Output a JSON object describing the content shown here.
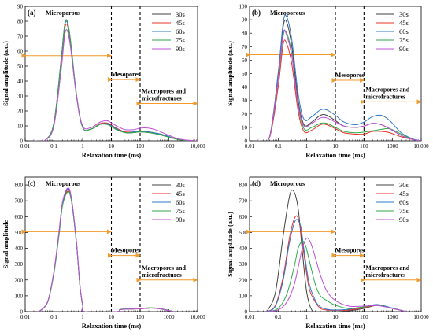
{
  "chart_data": [
    {
      "panel_label": "(a)",
      "type": "line",
      "xlabel": "Relaxation time (ms)",
      "ylabel": "Signal amplitude (a.u.)",
      "xscale": "log",
      "xlim": [
        0.01,
        10000
      ],
      "ylim": [
        0,
        90
      ],
      "xticks": [
        "0.01",
        "0.1",
        "1",
        "10",
        "100",
        "1000",
        "10,000"
      ],
      "yticks": [
        "0",
        "10",
        "20",
        "30",
        "40",
        "50",
        "60",
        "70",
        "80",
        "90"
      ],
      "legend": [
        "30s",
        "45s",
        "60s",
        "75s",
        "90s"
      ],
      "legend_position": "top-right",
      "region_labels": [
        "Microporous",
        "Mesopores",
        "Macropores and microfractures"
      ],
      "region_arrow_levels": [
        57,
        41,
        25
      ],
      "series": [
        {
          "name": "30s",
          "color": "#404040",
          "x": [
            0.02,
            0.05,
            0.1,
            0.18,
            0.25,
            0.35,
            0.6,
            1.0,
            2.0,
            4.0,
            7.0,
            10,
            15,
            30,
            60,
            100,
            200,
            400,
            800,
            2000,
            5000,
            10000
          ],
          "y": [
            0,
            0.5,
            12,
            55,
            80,
            72,
            32,
            9,
            8,
            11,
            11.5,
            10,
            8,
            5.5,
            5.5,
            6,
            5.5,
            4.5,
            3,
            1,
            0.2,
            0
          ]
        },
        {
          "name": "45s",
          "color": "#e8312a",
          "x": [
            0.02,
            0.05,
            0.1,
            0.18,
            0.25,
            0.35,
            0.6,
            1.0,
            2.0,
            4.0,
            7.0,
            10,
            15,
            30,
            60,
            100,
            200,
            400,
            800,
            2000,
            5000,
            10000
          ],
          "y": [
            0,
            0.5,
            12,
            53,
            77,
            70,
            31,
            9,
            8,
            11.5,
            12,
            10.5,
            8.5,
            6,
            6,
            6.5,
            6,
            5,
            3.5,
            1,
            0.2,
            0
          ]
        },
        {
          "name": "60s",
          "color": "#2f78c8",
          "x": [
            0.02,
            0.05,
            0.1,
            0.18,
            0.25,
            0.35,
            0.6,
            1.0,
            2.0,
            4.0,
            7.0,
            10,
            15,
            30,
            60,
            100,
            200,
            400,
            800,
            2000,
            5000,
            10000
          ],
          "y": [
            0,
            0.5,
            12,
            54,
            79,
            71,
            31,
            9,
            8,
            11,
            11.5,
            10,
            8,
            5.5,
            6,
            6.5,
            6,
            5,
            3.5,
            1,
            0.2,
            0
          ]
        },
        {
          "name": "75s",
          "color": "#2eaa4a",
          "x": [
            0.02,
            0.05,
            0.1,
            0.18,
            0.25,
            0.35,
            0.6,
            1.0,
            2.0,
            4.0,
            7.0,
            10,
            15,
            30,
            60,
            100,
            200,
            400,
            800,
            2000,
            5000,
            10000
          ],
          "y": [
            0,
            0.5,
            12,
            55,
            80,
            72,
            32,
            9,
            8,
            11,
            11,
            9.5,
            7.5,
            5.5,
            5.5,
            6,
            5.5,
            4.5,
            3,
            1,
            0.2,
            0
          ]
        },
        {
          "name": "90s",
          "color": "#c04fd8",
          "x": [
            0.02,
            0.05,
            0.1,
            0.18,
            0.25,
            0.35,
            0.6,
            1.0,
            2.0,
            4.0,
            7.0,
            10,
            15,
            30,
            60,
            100,
            200,
            400,
            800,
            2000,
            5000,
            10000
          ],
          "y": [
            0,
            0.5,
            10,
            48,
            73,
            67,
            31,
            10,
            9,
            12.5,
            13.5,
            12,
            10,
            7.5,
            7.5,
            8.5,
            8.5,
            7,
            4.5,
            1.5,
            0.3,
            0
          ]
        }
      ]
    },
    {
      "panel_label": "(b)",
      "type": "line",
      "xlabel": "Relaxation time (ms)",
      "ylabel": "Signal amplitude (a.u.)",
      "xscale": "log",
      "xlim": [
        0.01,
        10000
      ],
      "ylim": [
        0,
        100
      ],
      "xticks": [
        "0.01",
        "0.1",
        "1",
        "10",
        "100",
        "1000",
        "10,000"
      ],
      "yticks": [
        "0",
        "10",
        "20",
        "30",
        "40",
        "50",
        "60",
        "70",
        "80",
        "90",
        "100"
      ],
      "legend": [
        "30s",
        "45s",
        "60s",
        "75s",
        "90s"
      ],
      "legend_position": "top-right",
      "region_labels": [
        "Microporous",
        "Mesopores",
        "Macropores and microfractures"
      ],
      "region_arrow_levels": [
        64,
        45,
        29
      ],
      "series": [
        {
          "name": "30s",
          "color": "#404040",
          "x": [
            0.02,
            0.05,
            0.1,
            0.15,
            0.2,
            0.3,
            0.5,
            0.8,
            1.5,
            3,
            5,
            10,
            20,
            50,
            100,
            200,
            400,
            800,
            2000,
            5000,
            10000
          ],
          "y": [
            0,
            3,
            50,
            85,
            88,
            70,
            30,
            12,
            14,
            19,
            19,
            15,
            11,
            10,
            11,
            13,
            12,
            9,
            4,
            1,
            0
          ]
        },
        {
          "name": "45s",
          "color": "#e8312a",
          "x": [
            0.02,
            0.05,
            0.1,
            0.15,
            0.2,
            0.3,
            0.5,
            0.8,
            1.5,
            3,
            5,
            10,
            20,
            50,
            100,
            200,
            400,
            800,
            2000,
            5000,
            10000
          ],
          "y": [
            0,
            2.5,
            40,
            72,
            72,
            57,
            22,
            7,
            8,
            12,
            12,
            9,
            6,
            5,
            5,
            7,
            7,
            6,
            3,
            1,
            0
          ]
        },
        {
          "name": "60s",
          "color": "#2f78c8",
          "x": [
            0.02,
            0.05,
            0.1,
            0.15,
            0.2,
            0.3,
            0.5,
            0.8,
            1.5,
            3,
            5,
            10,
            20,
            50,
            100,
            200,
            400,
            800,
            2000,
            5000,
            10000
          ],
          "y": [
            0,
            3,
            50,
            88,
            92,
            75,
            35,
            16,
            18,
            23,
            23,
            19,
            14,
            12,
            14,
            18,
            19,
            15,
            6,
            1.5,
            0
          ]
        },
        {
          "name": "75s",
          "color": "#2eaa4a",
          "x": [
            0.02,
            0.05,
            0.1,
            0.15,
            0.2,
            0.3,
            0.5,
            0.8,
            1.5,
            3,
            5,
            10,
            20,
            50,
            100,
            200,
            400,
            800,
            2000,
            5000,
            10000
          ],
          "y": [
            0,
            3,
            45,
            78,
            80,
            64,
            26,
            9,
            10,
            13,
            13,
            10,
            7,
            6,
            6.5,
            7.5,
            8.5,
            9,
            5,
            1,
            0
          ]
        },
        {
          "name": "90s",
          "color": "#c04fd8",
          "x": [
            0.02,
            0.05,
            0.1,
            0.15,
            0.2,
            0.3,
            0.5,
            0.8,
            1.5,
            3,
            5,
            10,
            20,
            50,
            100,
            200,
            400,
            800,
            2000,
            5000,
            10000
          ],
          "y": [
            0,
            3,
            46,
            80,
            78,
            63,
            27,
            11,
            13,
            17,
            17,
            14,
            11,
            10,
            11,
            13,
            12,
            9,
            4,
            1,
            0
          ]
        }
      ]
    },
    {
      "panel_label": "(c)",
      "type": "line",
      "xlabel": "Relaxation time (ms)",
      "ylabel": "Signal amplitude",
      "xscale": "log",
      "xlim": [
        0.01,
        10000
      ],
      "ylim": [
        0,
        850
      ],
      "xticks": [
        "0.01",
        "0.1",
        "1",
        "10",
        "100",
        "1000",
        "10,000"
      ],
      "yticks": [
        "0",
        "100",
        "200",
        "300",
        "400",
        "500",
        "600",
        "700",
        "800"
      ],
      "legend": [
        "30s",
        "45s",
        "60s",
        "75s",
        "90s"
      ],
      "legend_position": "top-right",
      "region_labels": [
        "Microporous",
        "Mesopores",
        "Macropores and microfractures"
      ],
      "region_arrow_levels": [
        505,
        355,
        200
      ],
      "series": [
        {
          "name": "30s",
          "color": "#404040",
          "x": [
            0.03,
            0.06,
            0.1,
            0.15,
            0.2,
            0.3,
            0.4,
            0.6,
            0.8,
            1.0,
            1.2,
            15,
            20,
            40,
            100,
            200,
            400,
            800,
            1500
          ],
          "y": [
            0,
            60,
            250,
            500,
            690,
            770,
            720,
            450,
            170,
            40,
            0,
            0,
            12,
            16,
            18,
            22,
            20,
            10,
            0
          ]
        },
        {
          "name": "45s",
          "color": "#e8312a",
          "x": [
            0.03,
            0.06,
            0.1,
            0.15,
            0.2,
            0.3,
            0.4,
            0.6,
            0.8,
            1.0,
            1.2,
            15,
            20,
            40,
            100,
            200,
            400,
            800,
            1500
          ],
          "y": [
            0,
            60,
            245,
            490,
            680,
            760,
            710,
            445,
            165,
            40,
            0,
            0,
            12,
            16,
            18,
            22,
            20,
            10,
            0
          ]
        },
        {
          "name": "60s",
          "color": "#2f78c8",
          "x": [
            0.03,
            0.06,
            0.1,
            0.15,
            0.2,
            0.3,
            0.4,
            0.6,
            0.8,
            1.0,
            1.2,
            15,
            20,
            40,
            100,
            200,
            400,
            800,
            1500
          ],
          "y": [
            0,
            60,
            250,
            495,
            690,
            775,
            720,
            450,
            170,
            40,
            0,
            0,
            13,
            17,
            19,
            23,
            21,
            11,
            0
          ]
        },
        {
          "name": "75s",
          "color": "#2eaa4a",
          "x": [
            0.03,
            0.06,
            0.1,
            0.15,
            0.2,
            0.3,
            0.4,
            0.6,
            0.8,
            1.0,
            1.2,
            15,
            20,
            40,
            100,
            200,
            400,
            800,
            1500
          ],
          "y": [
            0,
            58,
            240,
            480,
            670,
            755,
            705,
            440,
            165,
            40,
            0,
            0,
            14,
            18,
            20,
            24,
            22,
            12,
            0
          ]
        },
        {
          "name": "90s",
          "color": "#c04fd8",
          "x": [
            0.03,
            0.06,
            0.1,
            0.15,
            0.2,
            0.3,
            0.4,
            0.6,
            0.8,
            1.0,
            1.2,
            15,
            20,
            40,
            100,
            200,
            400,
            800,
            1500
          ],
          "y": [
            0,
            62,
            255,
            505,
            695,
            780,
            725,
            455,
            175,
            42,
            0,
            0,
            12,
            16,
            18,
            22,
            20,
            10,
            0
          ]
        }
      ]
    },
    {
      "panel_label": "(d)",
      "type": "line",
      "xlabel": "Relaxation time (ms)",
      "ylabel": "Signal amplitude (a.u.)",
      "xscale": "log",
      "xlim": [
        0.01,
        10000
      ],
      "ylim": [
        0,
        850
      ],
      "xticks": [
        "0.01",
        "0.1",
        "1",
        "10",
        "100",
        "1000",
        "10,000"
      ],
      "yticks": [
        "0",
        "100",
        "200",
        "300",
        "400",
        "500",
        "600",
        "700",
        "800"
      ],
      "legend": [
        "30s",
        "45s",
        "60s",
        "75s",
        "90s"
      ],
      "legend_position": "top-right",
      "region_labels": [
        "Microporous",
        "Mesopores",
        "Macropores and microfractures"
      ],
      "region_arrow_levels": [
        505,
        355,
        200
      ],
      "series": [
        {
          "name": "30s",
          "color": "#404040",
          "x": [
            0.04,
            0.08,
            0.15,
            0.25,
            0.35,
            0.5,
            0.7,
            1.0,
            1.5,
            2.5,
            5,
            10,
            30,
            100,
            300,
            1000,
            3000
          ],
          "y": [
            0,
            120,
            480,
            730,
            760,
            650,
            380,
            120,
            10,
            0,
            0,
            0,
            5,
            20,
            40,
            20,
            0
          ]
        },
        {
          "name": "45s",
          "color": "#e8312a",
          "x": [
            0.04,
            0.08,
            0.15,
            0.25,
            0.4,
            0.55,
            0.8,
            1.2,
            2.0,
            3.0,
            5,
            10,
            30,
            100,
            300,
            1000,
            3000
          ],
          "y": [
            0,
            40,
            220,
            470,
            600,
            560,
            360,
            150,
            60,
            20,
            10,
            8,
            10,
            25,
            40,
            20,
            0
          ]
        },
        {
          "name": "60s",
          "color": "#2f78c8",
          "x": [
            0.04,
            0.08,
            0.15,
            0.25,
            0.4,
            0.6,
            0.8,
            1.2,
            2.0,
            3.0,
            5,
            10,
            30,
            100,
            300,
            1000,
            3000
          ],
          "y": [
            0,
            35,
            200,
            440,
            575,
            545,
            390,
            180,
            70,
            30,
            15,
            10,
            15,
            30,
            45,
            22,
            0
          ]
        },
        {
          "name": "75s",
          "color": "#2eaa4a",
          "x": [
            0.04,
            0.1,
            0.2,
            0.35,
            0.5,
            0.7,
            0.9,
            1.2,
            2.0,
            3.0,
            5,
            10,
            30,
            100,
            300,
            1000,
            3000
          ],
          "y": [
            0,
            20,
            110,
            270,
            400,
            445,
            420,
            330,
            170,
            100,
            70,
            40,
            20,
            30,
            40,
            20,
            0
          ]
        },
        {
          "name": "90s",
          "color": "#c04fd8",
          "x": [
            0.04,
            0.1,
            0.2,
            0.35,
            0.5,
            0.7,
            1.0,
            1.4,
            2.0,
            3.0,
            5,
            10,
            30,
            100,
            300,
            1000,
            3000
          ],
          "y": [
            0,
            10,
            60,
            160,
            280,
            400,
            465,
            430,
            340,
            230,
            130,
            70,
            35,
            35,
            38,
            20,
            0
          ]
        }
      ]
    }
  ]
}
